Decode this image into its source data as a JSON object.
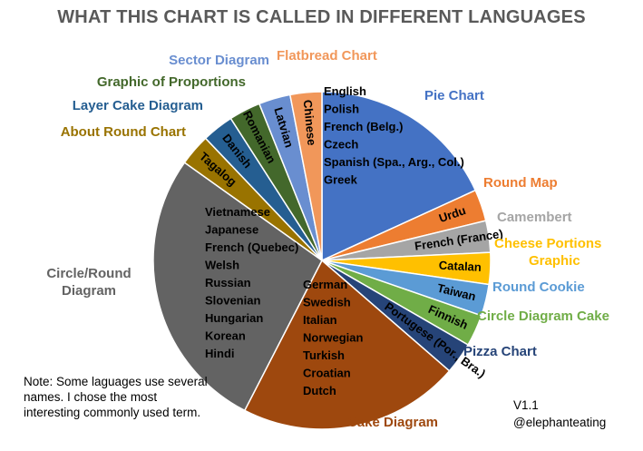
{
  "chart_data": {
    "type": "pie",
    "title": "WHAT THIS CHART IS CALLED IN DIFFERENT LANGUAGES",
    "slices": [
      {
        "label": "Pie Chart",
        "value": 6,
        "color": "#4472C4",
        "languages": [
          "English",
          "Polish",
          "French (Belg.)",
          "Czech",
          "Spanish (Spa., Arg., Col.)",
          "Greek"
        ]
      },
      {
        "label": "Round Map",
        "value": 1,
        "color": "#ED7D31",
        "languages": [
          "Urdu"
        ]
      },
      {
        "label": "Camembert",
        "value": 1,
        "color": "#A5A5A5",
        "languages": [
          "French (France)"
        ]
      },
      {
        "label": "Cheese Portions Graphic",
        "value": 1,
        "color": "#FFC000",
        "languages": [
          "Catalan"
        ]
      },
      {
        "label": "Round Cookie",
        "value": 1,
        "color": "#5B9BD5",
        "languages": [
          "Taiwan"
        ]
      },
      {
        "label": "Circle Diagram Cake",
        "value": 1,
        "color": "#70AD47",
        "languages": [
          "Finnish"
        ]
      },
      {
        "label": "Pizza Chart",
        "value": 1,
        "color": "#264478",
        "languages": [
          "Portugese (Por., Bra.)"
        ]
      },
      {
        "label": "Cake Diagram",
        "value": 7,
        "color": "#9E480E",
        "languages": [
          "German",
          "Swedish",
          "Italian",
          "Norwegian",
          "Turkish",
          "Croatian",
          "Dutch"
        ]
      },
      {
        "label": "Circle/Round Diagram",
        "value": 9,
        "color": "#636363",
        "languages": [
          "Vietnamese",
          "Japanese",
          "French (Quebec)",
          "Welsh",
          "Russian",
          "Slovenian",
          "Hungarian",
          "Korean",
          "Hindi"
        ]
      },
      {
        "label": "About Round Chart",
        "value": 1,
        "color": "#997300",
        "languages": [
          "Tagalog"
        ]
      },
      {
        "label": "Layer Cake Diagram",
        "value": 1,
        "color": "#255E91",
        "languages": [
          "Danish"
        ]
      },
      {
        "label": "Graphic of Proportions",
        "value": 1,
        "color": "#43682B",
        "languages": [
          "Romanian"
        ]
      },
      {
        "label": "Sector Diagram",
        "value": 1,
        "color": "#698ED0",
        "languages": [
          "Latvian"
        ]
      },
      {
        "label": "Flatbread Chart",
        "value": 1,
        "color": "#F1975A",
        "languages": [
          "Chinese"
        ]
      }
    ]
  },
  "note": "Note: Some laguages use several names. I chose the most interesting commonly used term.",
  "version": "V1.1",
  "author": "@elephanteating"
}
